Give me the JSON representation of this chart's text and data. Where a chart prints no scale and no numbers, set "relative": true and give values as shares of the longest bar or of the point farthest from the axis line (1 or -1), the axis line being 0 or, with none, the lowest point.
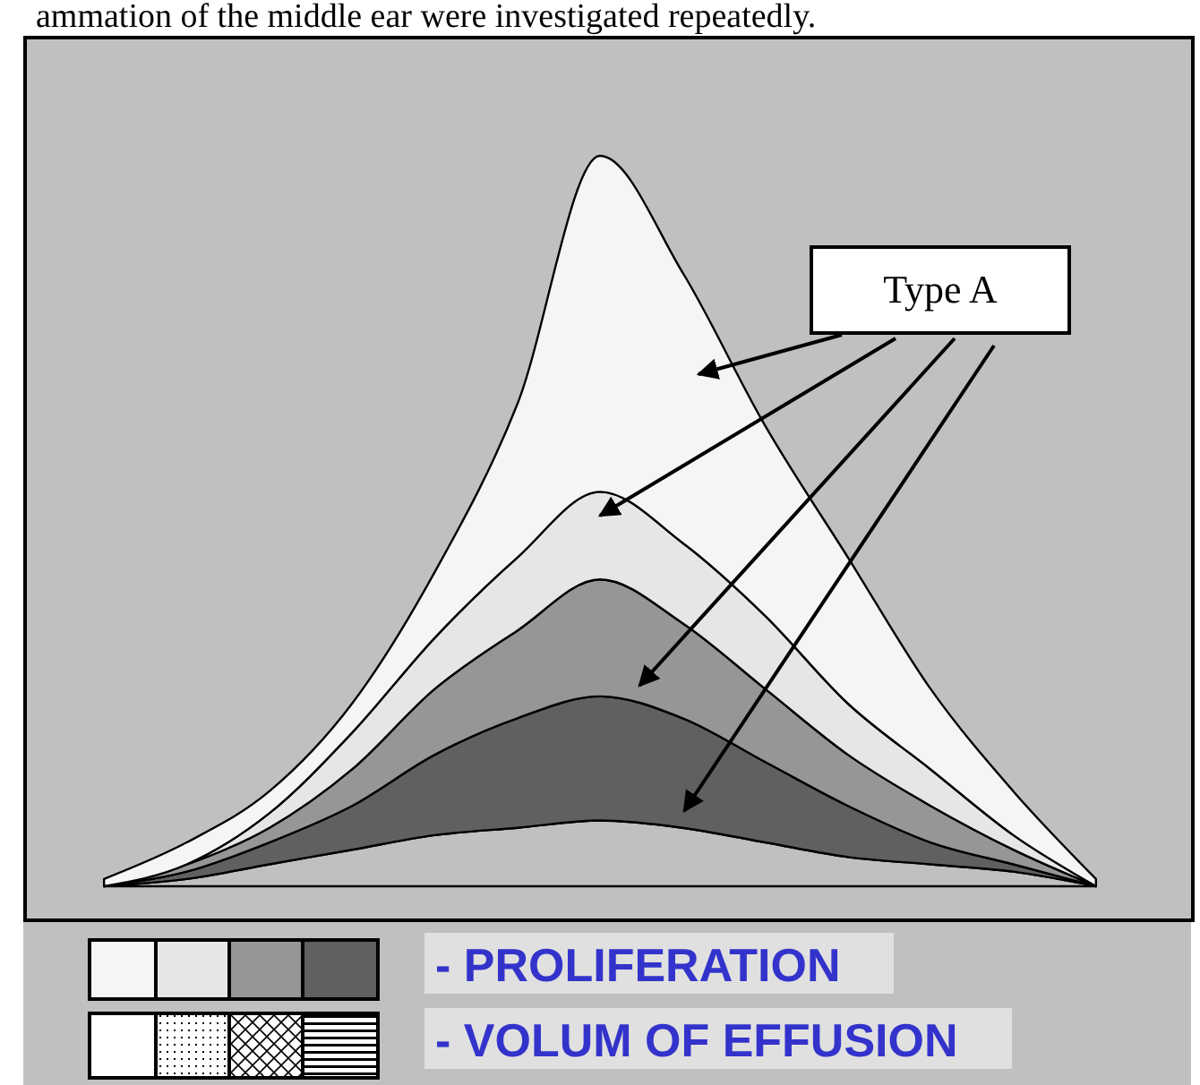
{
  "chart_data": {
    "type": "area",
    "stacked": true,
    "relative": true,
    "categories": [
      null,
      null,
      null,
      null,
      null,
      null,
      null,
      null,
      null,
      null,
      null,
      null,
      null
    ],
    "series": [
      {
        "color": "#c0c0c0",
        "values": [
          0,
          0.01,
          0.03,
          0.05,
          0.07,
          0.08,
          0.09,
          0.08,
          0.06,
          0.04,
          0.03,
          0.02,
          0
        ]
      },
      {
        "color": "#606060",
        "values": [
          0,
          0.01,
          0.03,
          0.06,
          0.11,
          0.15,
          0.17,
          0.15,
          0.11,
          0.07,
          0.03,
          0.01,
          0
        ]
      },
      {
        "color": "#969696",
        "values": [
          0,
          0.01,
          0.02,
          0.05,
          0.09,
          0.12,
          0.16,
          0.13,
          0.1,
          0.07,
          0.05,
          0.02,
          0
        ]
      },
      {
        "color": "#e6e6e6",
        "values": [
          0,
          0,
          0.02,
          0.05,
          0.07,
          0.1,
          0.12,
          0.11,
          0.1,
          0.07,
          0.05,
          0.02,
          0
        ]
      },
      {
        "color": "#f5f5f5",
        "values": [
          0.01,
          0.03,
          0.03,
          0.04,
          0.09,
          0.21,
          0.46,
          0.37,
          0.26,
          0.2,
          0.11,
          0.06,
          0.01
        ]
      }
    ],
    "annotations": [
      "ammation of the middle ear were investigated repeatedly.",
      "Type A",
      "- PROLIFERATION",
      "- VOLUM OF EFFUSION"
    ]
  }
}
